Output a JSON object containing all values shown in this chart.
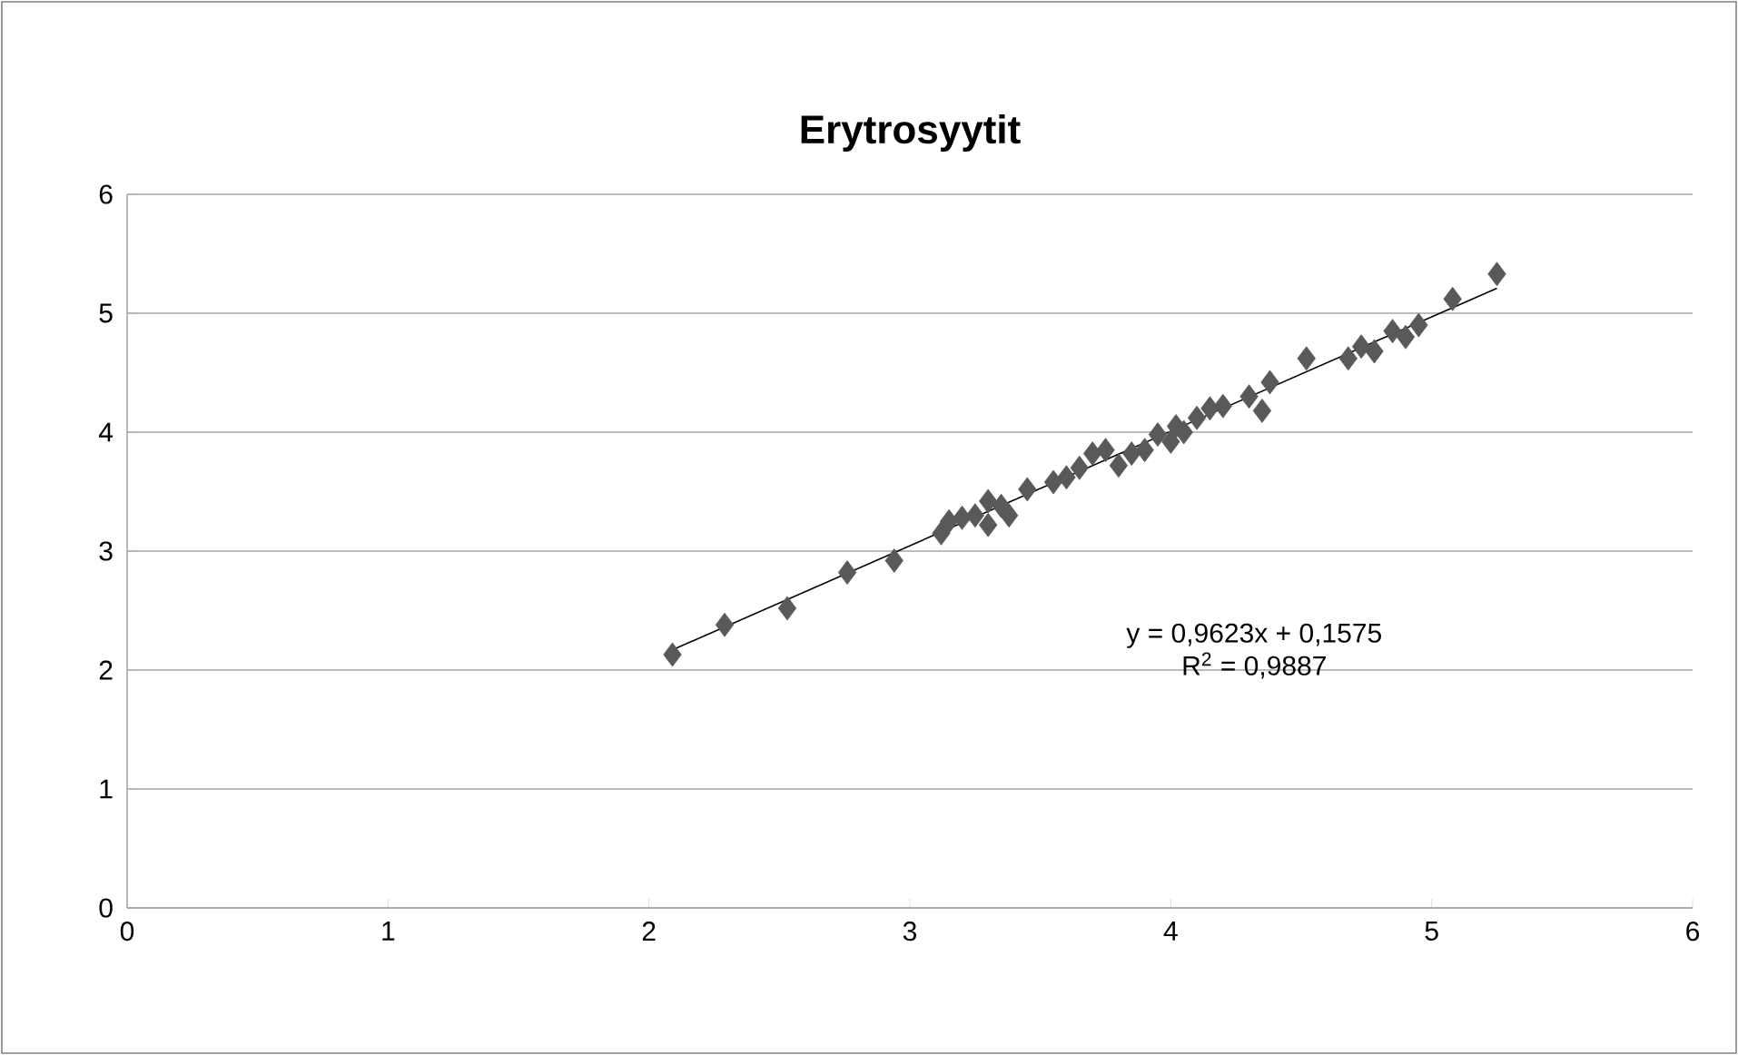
{
  "chart_data": {
    "type": "scatter",
    "title": "Erytrosyytit",
    "annotations": [
      "y = 0,9623x + 0,1575",
      "R$^{2}$ = 0,9887"
    ],
    "series": [
      {
        "type": "scatter",
        "color": "#595959",
        "marker": "diamond",
        "x": [
          2.09,
          2.29,
          2.53,
          2.76,
          2.94,
          3.12,
          3.15,
          3.2,
          3.25,
          3.3,
          3.3,
          3.35,
          3.38,
          3.45,
          3.55,
          3.6,
          3.65,
          3.7,
          3.75,
          3.8,
          3.85,
          3.9,
          3.95,
          4.0,
          4.02,
          4.05,
          4.1,
          4.15,
          4.2,
          4.3,
          4.35,
          4.38,
          4.52,
          4.68,
          4.73,
          4.78,
          4.85,
          4.9,
          4.95,
          5.08,
          5.25
        ],
        "values": [
          2.13,
          2.38,
          2.52,
          2.82,
          2.92,
          3.15,
          3.25,
          3.28,
          3.3,
          3.22,
          3.42,
          3.38,
          3.3,
          3.52,
          3.58,
          3.62,
          3.7,
          3.82,
          3.85,
          3.72,
          3.82,
          3.85,
          3.98,
          3.92,
          4.05,
          4.0,
          4.12,
          4.2,
          4.22,
          4.3,
          4.18,
          4.42,
          4.62,
          4.62,
          4.72,
          4.68,
          4.85,
          4.8,
          4.9,
          5.12,
          5.33
        ]
      },
      {
        "type": "line",
        "color": "#000000",
        "marker": "none",
        "x": [
          2.09,
          5.25
        ],
        "values": [
          2.17,
          5.21
        ]
      }
    ],
    "xlim": [
      0,
      6
    ],
    "ylim": [
      0,
      6
    ],
    "xticks": [
      0,
      1,
      2,
      3,
      4,
      5,
      6
    ],
    "yticks": [
      0,
      1,
      2,
      3,
      4,
      5,
      6
    ],
    "grid": "y"
  }
}
